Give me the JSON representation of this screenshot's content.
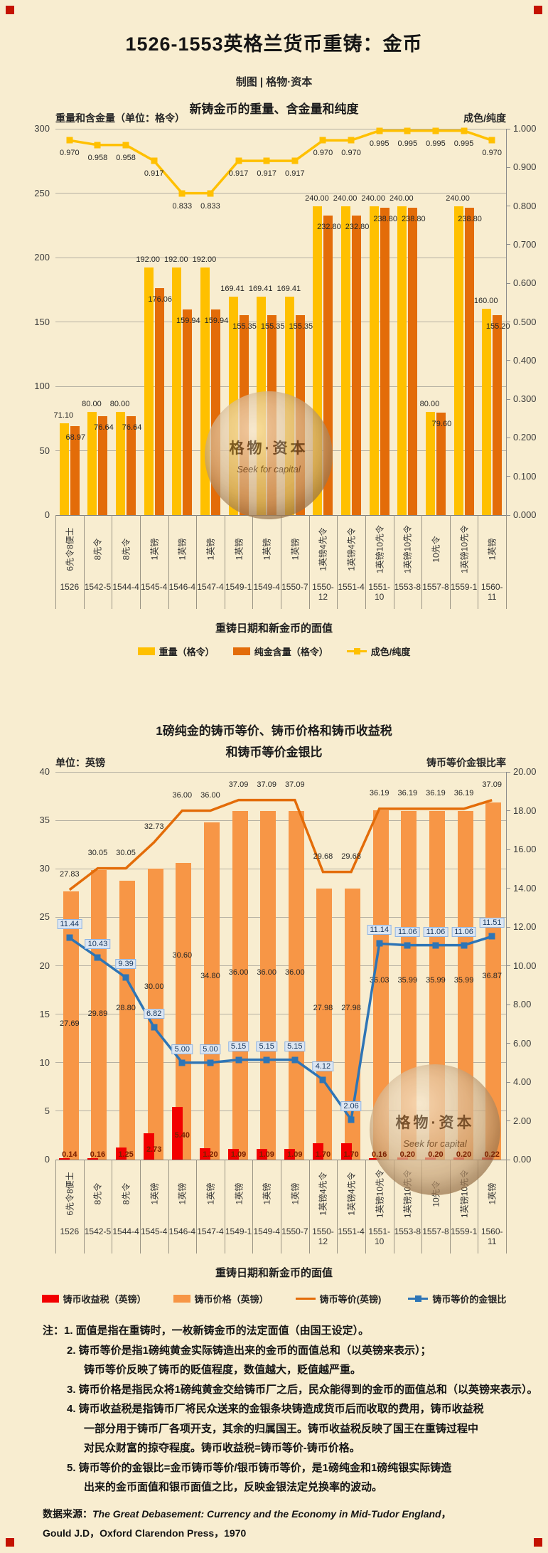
{
  "page": {
    "title": "1526-1553英格兰货币重铸：金币",
    "subtitle": "制图 | 格物·资本",
    "background_color": "#f8edd0",
    "corner_mark_color": "#c41200",
    "watermark": {
      "brand": "格物·资本",
      "tagline": "Seek for capital"
    }
  },
  "chart_data": [
    {
      "type": "bar",
      "title": "新铸金币的重量、含金量和纯度",
      "left_axis_title": "重量和含金量（单位：格令）",
      "right_axis_title": "成色/纯度",
      "x_axis_title": "重铸日期和新金币的面值",
      "grid": true,
      "legend_position": "bottom",
      "left_axis": {
        "min": 0,
        "max": 300,
        "tick_labels": [
          "300",
          "250",
          "200",
          "150",
          "100",
          "50",
          "0"
        ]
      },
      "right_axis": {
        "min": 0,
        "max": 1,
        "tick_labels": [
          "1.000",
          "0.900",
          "0.800",
          "0.700",
          "0.600",
          "0.500",
          "0.400",
          "0.300",
          "0.200",
          "0.100",
          "0.000"
        ]
      },
      "denominations": [
        "6先令8便士",
        "8先令",
        "8先令",
        "1英镑",
        "1英镑",
        "1英镑",
        "1英镑",
        "1英镑",
        "1英镑",
        "1英镑4先令",
        "1英镑4先令",
        "1英镑10先令",
        "1英镑10先令",
        "10先令",
        "1英镑10先令",
        "1英镑"
      ],
      "dates": [
        "1526",
        "1542-5",
        "1544-4",
        "1545-4",
        "1546-4",
        "1547-4",
        "1549-1",
        "1549-4",
        "1550-7",
        "1550-12",
        "1551-4",
        "1551-10",
        "1553-8",
        "1557-8",
        "1559-1",
        "1560-11"
      ],
      "series": [
        {
          "name": "重量（格令）",
          "kind": "bar",
          "axis": "left",
          "color": "#ffc000",
          "values": [
            "71.10",
            "80.00",
            "80.00",
            "192.00",
            "192.00",
            "192.00",
            "169.41",
            "169.41",
            "169.41",
            "240.00",
            "240.00",
            "240.00",
            "240.00",
            "80.00",
            "240.00",
            "160.00"
          ]
        },
        {
          "name": "纯金含量（格令）",
          "kind": "bar",
          "axis": "left",
          "color": "#e36c09",
          "values": [
            "68.97",
            "76.64",
            "76.64",
            "176.06",
            "159.94",
            "159.94",
            "155.35",
            "155.35",
            "155.35",
            "232.80",
            "232.80",
            "238.80",
            "238.80",
            "79.60",
            "238.80",
            "155.20"
          ]
        },
        {
          "name": "成色/纯度",
          "kind": "line",
          "axis": "right",
          "color": "#ffc000",
          "marker": true,
          "values": [
            "0.970",
            "0.958",
            "0.958",
            "0.917",
            "0.833",
            "0.833",
            "0.917",
            "0.917",
            "0.917",
            "0.970",
            "0.970",
            "0.995",
            "0.995",
            "0.995",
            "0.995",
            "0.970"
          ]
        }
      ],
      "legend": [
        {
          "label": "重量（格令）",
          "swatch": "bar",
          "color": "#ffc000"
        },
        {
          "label": "纯金含量（格令）",
          "swatch": "bar",
          "color": "#e36c09"
        },
        {
          "label": "成色/纯度",
          "swatch": "line-marker",
          "color": "#ffc000"
        }
      ]
    },
    {
      "type": "bar",
      "title_line1": "1磅纯金的铸币等价、铸币价格和铸币收益税",
      "title_line2": "和铸币等价金银比",
      "left_axis_title": "单位：英镑",
      "right_axis_title": "铸币等价金银比率",
      "x_axis_title": "重铸日期和新金币的面值",
      "grid": true,
      "legend_position": "bottom",
      "left_axis": {
        "min": 0,
        "max": 40,
        "tick_labels": [
          "40",
          "35",
          "30",
          "25",
          "20",
          "15",
          "10",
          "5",
          "0"
        ]
      },
      "right_axis": {
        "min": 0,
        "max": 20,
        "tick_labels": [
          "20.00",
          "18.00",
          "16.00",
          "14.00",
          "12.00",
          "10.00",
          "8.00",
          "6.00",
          "4.00",
          "2.00",
          "0.00"
        ]
      },
      "denominations": [
        "6先令8便士",
        "8先令",
        "8先令",
        "1英镑",
        "1英镑",
        "1英镑",
        "1英镑",
        "1英镑",
        "1英镑",
        "1英镑4先令",
        "1英镑4先令",
        "1英镑10先令",
        "1英镑10先令",
        "10先令",
        "1英镑10先令",
        "1英镑"
      ],
      "dates": [
        "1526",
        "1542-5",
        "1544-4",
        "1545-4",
        "1546-4",
        "1547-4",
        "1549-1",
        "1549-4",
        "1550-7",
        "1550-12",
        "1551-4",
        "1551-10",
        "1553-8",
        "1557-8",
        "1559-1",
        "1560-11"
      ],
      "series": [
        {
          "name": "铸币收益税（英镑）",
          "kind": "bar",
          "axis": "left",
          "color": "#f20000",
          "values": [
            "0.14",
            "0.16",
            "1.25",
            "2.73",
            "5.40",
            "1.20",
            "1.09",
            "1.09",
            "1.09",
            "1.70",
            "1.70",
            "0.16",
            "0.20",
            "0.20",
            "0.20",
            "0.22"
          ]
        },
        {
          "name": "铸币价格（英镑）",
          "kind": "bar",
          "axis": "left",
          "color": "#f79646",
          "values": [
            "27.69",
            "29.89",
            "28.80",
            "30.00",
            "30.60",
            "34.80",
            "36.00",
            "36.00",
            "36.00",
            "27.98",
            "27.98",
            "36.03",
            "35.99",
            "35.99",
            "35.99",
            "36.87"
          ]
        },
        {
          "name": "铸币等价(英镑)",
          "kind": "line",
          "axis": "left",
          "color": "#e36c09",
          "marker": false,
          "values": [
            "27.83",
            "30.05",
            "30.05",
            "32.73",
            "36.00",
            "36.00",
            "37.09",
            "37.09",
            "37.09",
            "29.68",
            "29.68",
            "36.19",
            "36.19",
            "36.19",
            "36.19",
            "37.09"
          ]
        },
        {
          "name": "铸币等价的金银比",
          "kind": "line",
          "axis": "right",
          "color": "#2e75b6",
          "marker": true,
          "boxed_labels": true,
          "values": [
            "11.44",
            "10.43",
            "9.39",
            "6.82",
            "5.00",
            "5.00",
            "5.15",
            "5.15",
            "5.15",
            "4.12",
            "2.06",
            "11.14",
            "11.06",
            "11.06",
            "11.06",
            "11.51"
          ]
        }
      ],
      "legend": [
        {
          "label": "铸币收益税（英镑）",
          "swatch": "bar",
          "color": "#f20000"
        },
        {
          "label": "铸币价格（英镑）",
          "swatch": "bar",
          "color": "#f79646"
        },
        {
          "label": "铸币等价(英镑)",
          "swatch": "line",
          "color": "#e36c09"
        },
        {
          "label": "铸币等价的金银比",
          "swatch": "line-marker",
          "color": "#2e75b6"
        }
      ]
    }
  ],
  "notes": [
    "注：1. 面值是指在重铸时，一枚新铸金币的法定面值（由国王设定）。",
    "2. 铸币等价是指1磅纯黄金实际铸造出来的金币的面值总和（以英镑来表示）；",
    "铸币等价反映了铸币的贬值程度，数值越大，贬值越严重。",
    "3. 铸币价格是指民众将1磅纯黄金交给铸币厂之后，民众能得到的金币的面值总和（以英镑来表示）。",
    "4. 铸币收益税是指铸币厂将民众送来的金银条块铸造成货币后而收取的费用，铸币收益税",
    "一部分用于铸币厂各项开支，其余的归属国王。铸币收益税反映了国王在重铸过程中",
    "对民众财富的掠夺程度。铸币收益税=铸币等价-铸币价格。",
    "5. 铸币等价的金银比=金币铸币等价/银币铸币等价，是1磅纯金和1磅纯银实际铸造",
    "出来的金币面值和银币面值之比，反映金银法定兑换率的波动。"
  ],
  "source": {
    "prefix": "数据来源：",
    "title_italic": "The Great Debasement: Currency and the Economy in Mid-Tudor England",
    "suffix": "，",
    "line2": "Gould  J.D，Oxford  Clarendon  Press，1970"
  }
}
